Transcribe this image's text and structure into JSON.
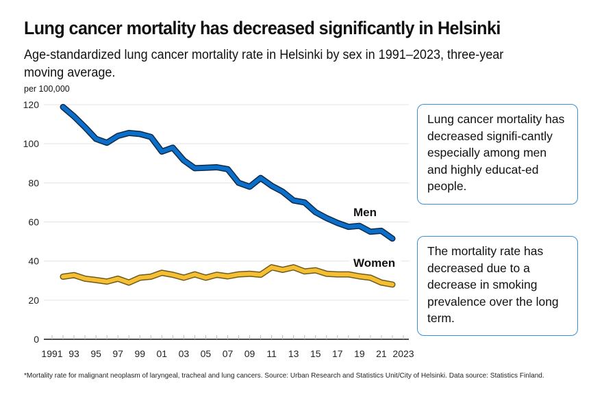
{
  "header": {
    "title": "Lung cancer mortality has decreased significantly in Helsinki",
    "subtitle": "Age-standardized lung cancer mortality rate in Helsinki by sex in 1991–2023, three-year moving average."
  },
  "callouts": [
    "Lung cancer mortality has decreased signifi-cantly especially among men and highly educat-ed people.",
    "The mortality rate has decreased due to a decrease in smoking prevalence over the long term."
  ],
  "footnote": "*Mortality rate for malignant neoplasm of laryngeal, tracheal and lung cancers. Source: Urban Research and Statistics Unit/City of Helsinki. Data source: Statistics Finland.",
  "colors": {
    "men": "#0b6fc9",
    "men_outline": "#0d2a47",
    "women": "#f6bf33",
    "women_outline": "#6b5a1e",
    "grid": "#e3e3e3",
    "axis": "#111111",
    "callout_border": "#3a8fd6"
  },
  "chart_data": {
    "type": "line",
    "title": "Lung cancer mortality has decreased significantly in Helsinki",
    "ylabel": "per 100,000",
    "xlabel": "",
    "ylim": [
      0,
      120
    ],
    "xlim": [
      1991,
      2023
    ],
    "grid": true,
    "y_ticks": [
      0,
      20,
      40,
      60,
      80,
      100,
      120
    ],
    "x_ticks": [
      1991,
      1993,
      1995,
      1997,
      1999,
      2001,
      2003,
      2005,
      2007,
      2009,
      2011,
      2013,
      2015,
      2017,
      2019,
      2021,
      2023
    ],
    "x_tick_labels": [
      "1991",
      "93",
      "95",
      "97",
      "99",
      "01",
      "03",
      "05",
      "07",
      "09",
      "11",
      "13",
      "15",
      "17",
      "19",
      "21",
      "2023"
    ],
    "x": [
      1992,
      1993,
      1994,
      1995,
      1996,
      1997,
      1998,
      1999,
      2000,
      2001,
      2002,
      2003,
      2004,
      2005,
      2006,
      2007,
      2008,
      2009,
      2010,
      2011,
      2012,
      2013,
      2014,
      2015,
      2016,
      2017,
      2018,
      2019,
      2020,
      2021,
      2022
    ],
    "series": [
      {
        "name": "Men",
        "values": [
          118.8,
          114,
          108.5,
          102.5,
          100.5,
          104,
          105.5,
          105,
          103.5,
          96,
          98,
          91.5,
          87.5,
          87.7,
          88,
          87,
          80,
          78,
          82.5,
          78.5,
          75.5,
          71,
          70,
          65,
          62,
          59.5,
          57.5,
          58,
          55,
          55.5,
          51.5
        ]
      },
      {
        "name": "Women",
        "values": [
          32,
          32.8,
          31,
          30.3,
          29.5,
          31,
          29,
          31.5,
          32,
          34,
          33,
          31.5,
          33.2,
          31.5,
          33,
          32.2,
          33.2,
          33.5,
          33,
          36.8,
          35.5,
          36.8,
          34.7,
          35.3,
          33.5,
          33.2,
          33.2,
          32.2,
          31.5,
          29,
          28
        ]
      }
    ],
    "legend": "inline-labels-right"
  }
}
